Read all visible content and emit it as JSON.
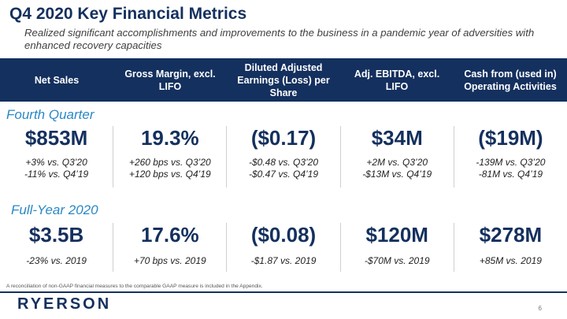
{
  "title": "Q4 2020 Key Financial Metrics",
  "subtitle": "Realized significant accomplishments and improvements to the business in a pandemic year of adversities with enhanced recovery capacities",
  "headers": [
    "Net Sales",
    "Gross Margin, excl. LIFO",
    "Diluted Adjusted Earnings (Loss) per Share",
    "Adj. EBITDA, excl. LIFO",
    "Cash from (used in) Operating Activities"
  ],
  "fourth_quarter": {
    "label": "Fourth Quarter",
    "metrics": [
      {
        "value": "$853M",
        "line1": "+3% vs. Q3’20",
        "line2": "-11% vs. Q4’19"
      },
      {
        "value": "19.3%",
        "line1": "+260 bps vs. Q3’20",
        "line2": "+120 bps vs. Q4’19"
      },
      {
        "value": "($0.17)",
        "line1": "-$0.48 vs. Q3’20",
        "line2": "-$0.47 vs. Q4’19"
      },
      {
        "value": "$34M",
        "line1": "+2M vs. Q3’20",
        "line2": "-$13M vs. Q4’19"
      },
      {
        "value": "($19M)",
        "line1": "-139M vs. Q3’20",
        "line2": "-81M vs. Q4’19"
      }
    ]
  },
  "full_year": {
    "label": "Full-Year 2020",
    "metrics": [
      {
        "value": "$3.5B",
        "line1": "-23% vs. 2019"
      },
      {
        "value": "17.6%",
        "line1": "+70 bps vs. 2019"
      },
      {
        "value": "($0.08)",
        "line1": "-$1.87 vs. 2019"
      },
      {
        "value": "$120M",
        "line1": "-$70M vs. 2019"
      },
      {
        "value": "$278M",
        "line1": "+85M vs. 2019"
      }
    ]
  },
  "footnote": "A reconciliation of non-GAAP financial measures to the comparable GAAP measure is included in the Appendix.",
  "logo": "RYERSON",
  "page_number": "6"
}
